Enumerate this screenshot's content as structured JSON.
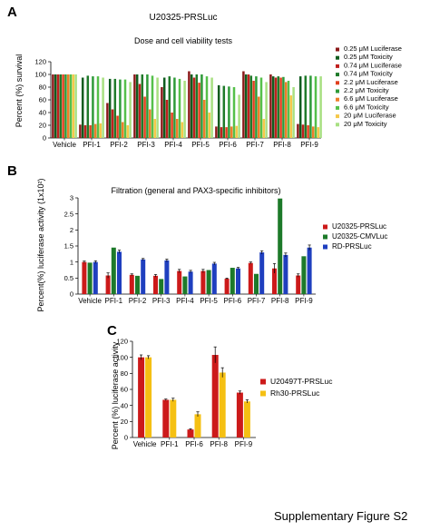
{
  "panels": {
    "a": {
      "letter": "A",
      "cell_line": "U20325-PRSLuc",
      "subtitle": "Dose and cell viability tests"
    },
    "b": {
      "letter": "B",
      "subtitle": "Filtration (general and PAX3-specific inhibitors)"
    },
    "c": {
      "letter": "C"
    }
  },
  "footer": "Supplementary Figure S2",
  "chart_data": [
    {
      "id": "A",
      "type": "bar",
      "title": "U20325-PRSLuc",
      "subtitle": "Dose and cell viability tests",
      "xlabel": "",
      "ylabel": "Percent (%) survival",
      "ylim": [
        0,
        120
      ],
      "yticks": [
        0,
        20,
        40,
        60,
        80,
        100,
        120
      ],
      "grid": false,
      "legend": "right",
      "categories": [
        "Vehicle",
        "PFI-1",
        "PFI-2",
        "PFI-3",
        "PFI-4",
        "PFI-5",
        "PFI-6",
        "PFI-7",
        "PFI-8",
        "PFI-9"
      ],
      "series": [
        {
          "name": "0.25 μM Luciferase",
          "color": "#8b1a1a",
          "values": [
            100,
            21,
            55,
            100,
            80,
            105,
            18,
            105,
            100,
            22
          ]
        },
        {
          "name": "0.25 μM Toxicity",
          "color": "#0f5c1e",
          "values": [
            100,
            95,
            93,
            100,
            95,
            100,
            83,
            100,
            97,
            97
          ]
        },
        {
          "name": "0.74 μM Luciferase",
          "color": "#c0201e",
          "values": [
            100,
            20,
            45,
            85,
            60,
            95,
            17,
            100,
            95,
            21
          ]
        },
        {
          "name": "0.74 μM Toxicity",
          "color": "#1f7a2a",
          "values": [
            100,
            98,
            93,
            100,
            97,
            100,
            82,
            98,
            97,
            98
          ]
        },
        {
          "name": "2.2 μM Luciferase",
          "color": "#e0401e",
          "values": [
            100,
            20,
            35,
            65,
            40,
            87,
            17,
            90,
            95,
            20
          ]
        },
        {
          "name": "2.2 μM Toxicity",
          "color": "#2e9a38",
          "values": [
            100,
            97,
            92,
            100,
            95,
            100,
            81,
            97,
            96,
            98
          ]
        },
        {
          "name": "6.6 μM Luciferase",
          "color": "#ee7d2a",
          "values": [
            100,
            22,
            25,
            45,
            30,
            60,
            18,
            65,
            88,
            18
          ]
        },
        {
          "name": "6.6 μM Toxicity",
          "color": "#55c04a",
          "values": [
            100,
            97,
            92,
            98,
            93,
            97,
            80,
            95,
            90,
            97
          ]
        },
        {
          "name": "20 μM Luciferase",
          "color": "#f6c84a",
          "values": [
            100,
            23,
            20,
            30,
            25,
            40,
            19,
            30,
            67,
            17
          ]
        },
        {
          "name": "20 μM Toxicity",
          "color": "#a8e082",
          "values": [
            100,
            95,
            88,
            95,
            90,
            95,
            68,
            88,
            80,
            97
          ]
        }
      ]
    },
    {
      "id": "B",
      "type": "bar",
      "title": "Filtration (general and PAX3-specific inhibitors)",
      "xlabel": "",
      "ylabel": "Percent(%) luciferase activity (1x10²)",
      "ylim": [
        0,
        3.0
      ],
      "yticks": [
        0,
        0.5,
        1.0,
        1.5,
        2.0,
        2.5,
        3.0
      ],
      "ytick_labels": [
        "0",
        "0.5",
        "1",
        "1.5",
        "2",
        "2.5",
        "3"
      ],
      "grid": false,
      "legend": "right",
      "error_bars": true,
      "categories": [
        "Vehicle",
        "PFI-1",
        "PFI-2",
        "PFI-3",
        "PFI-4",
        "PFI-5",
        "PFI-6",
        "PFI-7",
        "PFI-8",
        "PFI-9"
      ],
      "series": [
        {
          "name": "U20325-PRSLuc",
          "color": "#cc1a1a",
          "values": [
            1.0,
            0.58,
            0.6,
            0.57,
            0.72,
            0.72,
            0.48,
            0.97,
            0.8,
            0.58
          ],
          "errors": [
            0.03,
            0.08,
            0.03,
            0.04,
            0.05,
            0.05,
            0.02,
            0.03,
            0.15,
            0.05
          ]
        },
        {
          "name": "U20325-CMVLuc",
          "color": "#1d7a2a",
          "values": [
            0.98,
            1.45,
            0.57,
            0.47,
            0.55,
            0.75,
            0.82,
            0.63,
            2.98,
            1.18
          ]
        },
        {
          "name": "RD-PRSLuc",
          "color": "#1f3fbf",
          "values": [
            1.0,
            1.32,
            1.08,
            1.05,
            0.7,
            0.95,
            0.8,
            1.3,
            1.22,
            1.45
          ],
          "errors": [
            0.04,
            0.05,
            0.03,
            0.04,
            0.04,
            0.04,
            0.03,
            0.05,
            0.06,
            0.08
          ]
        }
      ]
    },
    {
      "id": "C",
      "type": "bar",
      "title": "",
      "xlabel": "",
      "ylabel": "Percent (%) luciferase activity",
      "ylim": [
        0,
        120
      ],
      "yticks": [
        0,
        20,
        40,
        60,
        80,
        100,
        120
      ],
      "grid": false,
      "legend": "right",
      "error_bars": true,
      "categories": [
        "Vehicle",
        "PFI-1",
        "PFI-6",
        "PFI-8",
        "PFI-9"
      ],
      "series": [
        {
          "name": "U20497T-PRSLuc",
          "color": "#cc1a1a",
          "values": [
            100,
            47,
            10,
            103,
            56
          ],
          "errors": [
            3,
            1,
            1,
            10,
            2
          ]
        },
        {
          "name": "Rh30-PRSLuc",
          "color": "#f5c013",
          "values": [
            100,
            47,
            29,
            81,
            45
          ],
          "errors": [
            2,
            2,
            3,
            6,
            2
          ]
        }
      ]
    }
  ]
}
